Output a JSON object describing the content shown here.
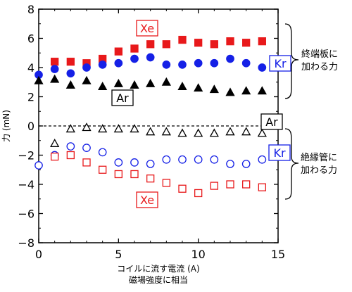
{
  "colors": {
    "xe": "#e8191b",
    "kr": "#1520e6",
    "ar": "#000000"
  },
  "chart_data": {
    "type": "scatter",
    "title": "",
    "xlabel": [
      "コイルに流す電流 (A)",
      "磁場強度に相当"
    ],
    "ylabel": "力 (mN)",
    "xlim": [
      0,
      15
    ],
    "ylim": [
      -8,
      8
    ],
    "x_ticks": [
      "0",
      "5",
      "10",
      "15"
    ],
    "y_ticks": [
      "-8",
      "-6",
      "-4",
      "-2",
      "0",
      "2",
      "4",
      "6",
      "8"
    ],
    "grid": false,
    "zero_line": "dashed",
    "series": [
      {
        "name": "Xe",
        "group": "終端板に加わる力",
        "marker": "filled-square",
        "color": "#e8191b",
        "x": [
          1,
          2,
          3,
          4,
          5,
          6,
          7,
          8,
          9,
          10,
          11,
          12,
          13,
          14
        ],
        "y": [
          4.4,
          4.4,
          4.3,
          4.6,
          5.1,
          5.3,
          5.6,
          5.6,
          5.9,
          5.7,
          5.6,
          5.8,
          5.7,
          5.8
        ]
      },
      {
        "name": "Kr",
        "group": "終端板に加わる力",
        "marker": "filled-circle",
        "color": "#1520e6",
        "x": [
          0,
          1,
          2,
          3,
          4,
          5,
          6,
          7,
          8,
          9,
          10,
          11,
          12,
          13,
          14
        ],
        "y": [
          3.5,
          3.9,
          3.6,
          4.0,
          4.2,
          4.3,
          4.6,
          4.7,
          4.2,
          4.2,
          4.3,
          4.3,
          4.6,
          4.3,
          4.0
        ]
      },
      {
        "name": "Ar",
        "group": "終端板に加わる力",
        "marker": "filled-triangle",
        "color": "#000000",
        "x": [
          0,
          1,
          2,
          3,
          4,
          5,
          6,
          7,
          8,
          9,
          10,
          11,
          12,
          13,
          14
        ],
        "y": [
          3.1,
          3.2,
          2.8,
          3.1,
          2.7,
          2.9,
          2.8,
          2.9,
          3.0,
          2.7,
          2.6,
          2.5,
          2.3,
          2.4,
          2.4
        ]
      },
      {
        "name": "Ar",
        "group": "絶縁管に加わる力",
        "marker": "open-triangle",
        "color": "#000000",
        "x": [
          1,
          2,
          3,
          4,
          5,
          6,
          7,
          8,
          9,
          10,
          11,
          12,
          13,
          14
        ],
        "y": [
          -1.2,
          -0.2,
          -0.1,
          -0.2,
          -0.2,
          -0.2,
          -0.4,
          -0.4,
          -0.5,
          -0.5,
          -0.5,
          -0.4,
          -0.4,
          -0.5
        ]
      },
      {
        "name": "Kr",
        "group": "絶縁管に加わる力",
        "marker": "open-circle",
        "color": "#1520e6",
        "x": [
          0,
          1,
          2,
          3,
          4,
          5,
          6,
          7,
          8,
          9,
          10,
          11,
          12,
          13,
          14
        ],
        "y": [
          -2.7,
          -2.0,
          -1.4,
          -1.5,
          -1.8,
          -2.5,
          -2.5,
          -2.6,
          -2.3,
          -2.3,
          -2.3,
          -2.3,
          -2.6,
          -2.6,
          -2.3
        ]
      },
      {
        "name": "Xe",
        "group": "絶縁管に加わる力",
        "marker": "open-square",
        "color": "#e8191b",
        "x": [
          1,
          2,
          3,
          4,
          5,
          6,
          7,
          8,
          9,
          10,
          11,
          12,
          13,
          14
        ],
        "y": [
          -2.1,
          -2.0,
          -2.5,
          -3.0,
          -3.3,
          -3.3,
          -3.6,
          -3.9,
          -4.3,
          -4.6,
          -4.1,
          -4.0,
          -4.0,
          -4.2
        ]
      }
    ],
    "annotations": [
      {
        "text": "Xe",
        "boxed": true,
        "color": "#e8191b"
      },
      {
        "text": "Kr",
        "boxed": true,
        "color": "#1520e6"
      },
      {
        "text": "Ar",
        "boxed": true,
        "color": "#000000"
      },
      {
        "text": "Ar",
        "boxed": true,
        "color": "#000000"
      },
      {
        "text": "Kr",
        "boxed": true,
        "color": "#1520e6"
      },
      {
        "text": "Xe",
        "boxed": true,
        "color": "#e8191b"
      }
    ],
    "brace_labels": [
      [
        "終端板に",
        "加わる力"
      ],
      [
        "絶縁管に",
        "加わる力"
      ]
    ]
  }
}
